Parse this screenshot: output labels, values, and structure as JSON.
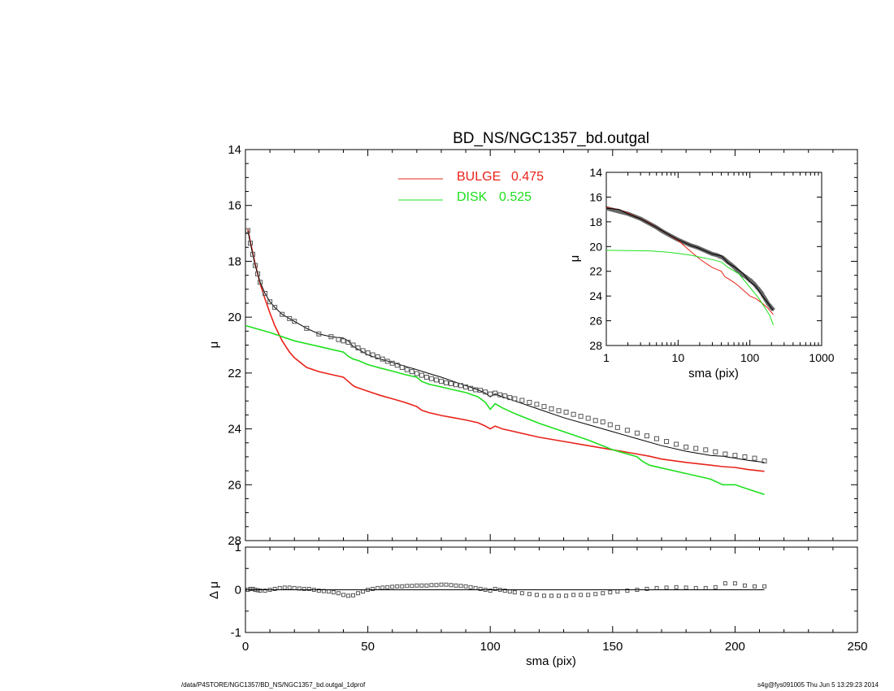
{
  "chart_data": [
    {
      "type": "line",
      "title": "BD_NS/NGC1357_bd.outgal",
      "xlabel": "",
      "ylabel": "μ",
      "xlim": [
        0,
        250
      ],
      "ylim": [
        28,
        14
      ],
      "y_inverted": true,
      "xticks": [
        "0",
        "50",
        "100",
        "150",
        "200",
        "250"
      ],
      "yticks": [
        "14",
        "16",
        "18",
        "20",
        "22",
        "24",
        "26",
        "28"
      ],
      "legend": [
        {
          "label": "BULGE",
          "value": "0.475",
          "color": "#e8231a"
        },
        {
          "label": "DISK",
          "value": "0.525",
          "color": "#1ee01e"
        }
      ],
      "series": [
        {
          "name": "BULGE",
          "color": "#e8231a",
          "x": [
            1,
            2,
            3,
            4,
            5,
            6,
            8,
            10,
            12,
            15,
            18,
            20,
            25,
            30,
            35,
            40,
            42,
            44,
            45,
            50,
            55,
            60,
            65,
            70,
            72,
            75,
            80,
            85,
            90,
            95,
            98,
            100,
            102,
            105,
            110,
            120,
            130,
            140,
            150,
            160,
            165,
            170,
            180,
            190,
            195,
            200,
            205,
            212
          ],
          "y": [
            16.85,
            17.3,
            17.7,
            18.1,
            18.45,
            18.8,
            19.35,
            19.85,
            20.3,
            20.85,
            21.25,
            21.45,
            21.8,
            21.95,
            22.05,
            22.15,
            22.3,
            22.45,
            22.5,
            22.65,
            22.8,
            22.92,
            23.05,
            23.2,
            23.33,
            23.42,
            23.52,
            23.6,
            23.68,
            23.78,
            23.9,
            24.0,
            23.9,
            24.0,
            24.1,
            24.3,
            24.45,
            24.6,
            24.75,
            24.9,
            24.98,
            25.08,
            25.2,
            25.3,
            25.35,
            25.38,
            25.45,
            25.52
          ]
        },
        {
          "name": "DISK",
          "color": "#1ee01e",
          "x": [
            0,
            10,
            20,
            30,
            35,
            40,
            42,
            44,
            46,
            50,
            55,
            60,
            65,
            70,
            72,
            75,
            80,
            85,
            90,
            95,
            98,
            100,
            102,
            105,
            110,
            120,
            130,
            140,
            150,
            160,
            162,
            165,
            170,
            180,
            190,
            195,
            200,
            205,
            212
          ],
          "y": [
            20.3,
            20.55,
            20.85,
            21.05,
            21.15,
            21.25,
            21.4,
            21.5,
            21.55,
            21.7,
            21.82,
            21.93,
            22.05,
            22.15,
            22.3,
            22.4,
            22.5,
            22.6,
            22.7,
            22.85,
            23.05,
            23.3,
            23.1,
            23.25,
            23.45,
            23.8,
            24.1,
            24.4,
            24.75,
            25.0,
            25.15,
            25.3,
            25.4,
            25.6,
            25.8,
            26.0,
            26.0,
            26.15,
            26.35
          ]
        },
        {
          "name": "",
          "color": "#000000",
          "x": [
            1,
            2,
            3,
            4,
            5,
            6,
            8,
            10,
            12,
            15,
            18,
            20,
            25,
            30,
            35,
            40,
            42,
            44,
            46,
            48,
            50,
            55,
            60,
            65,
            70,
            75,
            80,
            85,
            90,
            95,
            98,
            100,
            102,
            105,
            110,
            120,
            130,
            140,
            150,
            160,
            170,
            180,
            190,
            195,
            200,
            205,
            212
          ],
          "y": [
            16.9,
            17.35,
            17.75,
            18.15,
            18.45,
            18.75,
            19.15,
            19.45,
            19.65,
            19.9,
            20.05,
            20.15,
            20.4,
            20.6,
            20.7,
            20.75,
            20.85,
            21.05,
            21.15,
            21.25,
            21.35,
            21.5,
            21.62,
            21.75,
            21.88,
            22.02,
            22.15,
            22.3,
            22.45,
            22.6,
            22.72,
            22.85,
            22.75,
            22.85,
            23.0,
            23.3,
            23.6,
            23.85,
            24.1,
            24.35,
            24.6,
            24.8,
            24.95,
            24.98,
            25.05,
            25.12,
            25.2
          ]
        },
        {
          "name": "",
          "marker": "square",
          "color": "#555555",
          "x": [
            1,
            2,
            3,
            4,
            5,
            6,
            8,
            10,
            12,
            15,
            18,
            20,
            25,
            30,
            35,
            38,
            40,
            42,
            44,
            46,
            48,
            50,
            52,
            54,
            56,
            58,
            60,
            62,
            64,
            66,
            68,
            70,
            72,
            74,
            76,
            78,
            80,
            82,
            84,
            86,
            88,
            90,
            92,
            94,
            96,
            98,
            100,
            102,
            104,
            106,
            108,
            110,
            113,
            116,
            119,
            122,
            125,
            128,
            131,
            134,
            137,
            140,
            143,
            146,
            149,
            152,
            156,
            160,
            164,
            168,
            172,
            176,
            180,
            184,
            188,
            192,
            196,
            200,
            204,
            208,
            212
          ],
          "y": [
            16.9,
            17.35,
            17.75,
            18.15,
            18.45,
            18.75,
            19.15,
            19.45,
            19.65,
            19.9,
            20.05,
            20.15,
            20.4,
            20.6,
            20.7,
            20.8,
            20.85,
            20.9,
            21.0,
            21.1,
            21.2,
            21.28,
            21.35,
            21.42,
            21.5,
            21.58,
            21.65,
            21.72,
            21.8,
            21.88,
            21.95,
            22.02,
            22.08,
            22.15,
            22.2,
            22.25,
            22.3,
            22.35,
            22.38,
            22.42,
            22.45,
            22.5,
            22.55,
            22.6,
            22.62,
            22.68,
            22.75,
            22.72,
            22.78,
            22.82,
            22.88,
            22.92,
            22.98,
            23.05,
            23.12,
            23.2,
            23.28,
            23.35,
            23.4,
            23.48,
            23.55,
            23.62,
            23.7,
            23.75,
            23.85,
            23.95,
            24.05,
            24.15,
            24.25,
            24.35,
            24.45,
            24.55,
            24.65,
            24.7,
            24.75,
            24.82,
            24.9,
            24.95,
            25.0,
            25.05,
            25.15
          ]
        }
      ]
    },
    {
      "type": "scatter",
      "title": "",
      "xlabel": "sma (pix)",
      "ylabel": "Δ μ",
      "xlim": [
        0,
        250
      ],
      "ylim": [
        -1,
        1
      ],
      "xticks": [
        "0",
        "50",
        "100",
        "150",
        "200",
        "250"
      ],
      "yticks": [
        "-1",
        "0",
        "1"
      ],
      "series": [
        {
          "name": "",
          "marker": "square",
          "color": "#555555",
          "x": [
            1,
            2,
            3,
            4,
            5,
            6,
            8,
            10,
            12,
            14,
            16,
            18,
            20,
            22,
            24,
            26,
            28,
            30,
            32,
            34,
            36,
            38,
            40,
            42,
            44,
            46,
            48,
            50,
            52,
            54,
            56,
            58,
            60,
            62,
            64,
            66,
            68,
            70,
            72,
            74,
            76,
            78,
            80,
            82,
            84,
            86,
            88,
            90,
            92,
            94,
            96,
            98,
            100,
            102,
            104,
            106,
            108,
            110,
            113,
            116,
            119,
            122,
            125,
            128,
            131,
            134,
            137,
            140,
            143,
            146,
            149,
            152,
            156,
            160,
            164,
            168,
            172,
            176,
            180,
            184,
            188,
            192,
            196,
            200,
            204,
            208,
            212
          ],
          "y": [
            0.0,
            0.02,
            0.02,
            0.0,
            -0.01,
            -0.02,
            -0.02,
            0.0,
            0.02,
            0.04,
            0.05,
            0.05,
            0.04,
            0.03,
            0.02,
            0.02,
            0.0,
            -0.02,
            -0.03,
            -0.04,
            -0.06,
            -0.08,
            -0.12,
            -0.14,
            -0.13,
            -0.08,
            -0.04,
            0.0,
            0.02,
            0.04,
            0.05,
            0.06,
            0.07,
            0.08,
            0.08,
            0.09,
            0.09,
            0.1,
            0.1,
            0.1,
            0.11,
            0.11,
            0.12,
            0.12,
            0.11,
            0.1,
            0.09,
            0.08,
            0.06,
            0.04,
            0.02,
            0.0,
            -0.02,
            0.02,
            0.0,
            -0.02,
            -0.04,
            -0.06,
            -0.08,
            -0.1,
            -0.12,
            -0.14,
            -0.14,
            -0.14,
            -0.14,
            -0.12,
            -0.12,
            -0.12,
            -0.1,
            -0.08,
            -0.06,
            -0.04,
            -0.02,
            0.0,
            0.02,
            0.04,
            0.05,
            0.06,
            0.05,
            0.04,
            0.04,
            0.06,
            0.15,
            0.15,
            0.1,
            0.08,
            0.08
          ]
        },
        {
          "name": "",
          "color": "#000000",
          "x": [
            0,
            212
          ],
          "y": [
            0,
            0
          ]
        }
      ]
    },
    {
      "type": "line",
      "title": "",
      "xlabel": "sma (pix)",
      "ylabel": "μ",
      "xscale": "log",
      "xlim": [
        1,
        1000
      ],
      "ylim": [
        28,
        14
      ],
      "y_inverted": true,
      "xticks": [
        "1",
        "10",
        "100",
        "1000"
      ],
      "yticks": [
        "14",
        "16",
        "18",
        "20",
        "22",
        "24",
        "26",
        "28"
      ],
      "series": [
        {
          "name": "BULGE",
          "color": "#e8231a",
          "x": [
            1,
            1.5,
            2,
            3,
            4,
            5,
            7,
            10,
            15,
            20,
            25,
            30,
            40,
            45,
            50,
            60,
            70,
            80,
            100,
            120,
            150,
            180,
            212
          ],
          "y": [
            16.85,
            17.0,
            17.3,
            17.75,
            18.1,
            18.45,
            18.95,
            19.5,
            20.4,
            21.0,
            21.4,
            21.7,
            22.0,
            22.45,
            22.6,
            22.9,
            23.2,
            23.5,
            24.0,
            24.2,
            24.6,
            25.0,
            25.5
          ]
        },
        {
          "name": "DISK",
          "color": "#1ee01e",
          "x": [
            1,
            2,
            4,
            7,
            10,
            15,
            20,
            30,
            40,
            50,
            70,
            100,
            130,
            160,
            190,
            212
          ],
          "y": [
            20.3,
            20.32,
            20.35,
            20.45,
            20.55,
            20.7,
            20.85,
            21.05,
            21.25,
            21.7,
            22.2,
            23.3,
            24.1,
            24.9,
            25.6,
            26.35
          ]
        },
        {
          "name": "",
          "color": "#000000",
          "x": [
            1,
            1.5,
            2,
            3,
            4,
            5,
            7,
            10,
            15,
            20,
            25,
            30,
            40,
            45,
            50,
            60,
            70,
            80,
            100,
            120,
            150,
            180,
            212
          ],
          "y": [
            16.9,
            17.0,
            17.35,
            17.75,
            18.15,
            18.45,
            18.95,
            19.45,
            19.9,
            20.15,
            20.4,
            20.6,
            20.75,
            21.05,
            21.35,
            21.62,
            21.9,
            22.15,
            22.85,
            23.2,
            24.0,
            24.6,
            25.2
          ]
        }
      ]
    }
  ],
  "footer": {
    "left": "/data/P4STORE/NGC1357/BD_NS/NGC1357_bd.outgal_1dprof",
    "right": "s4g@fys091005  Thu Jun  5 13:29:23 2014"
  }
}
